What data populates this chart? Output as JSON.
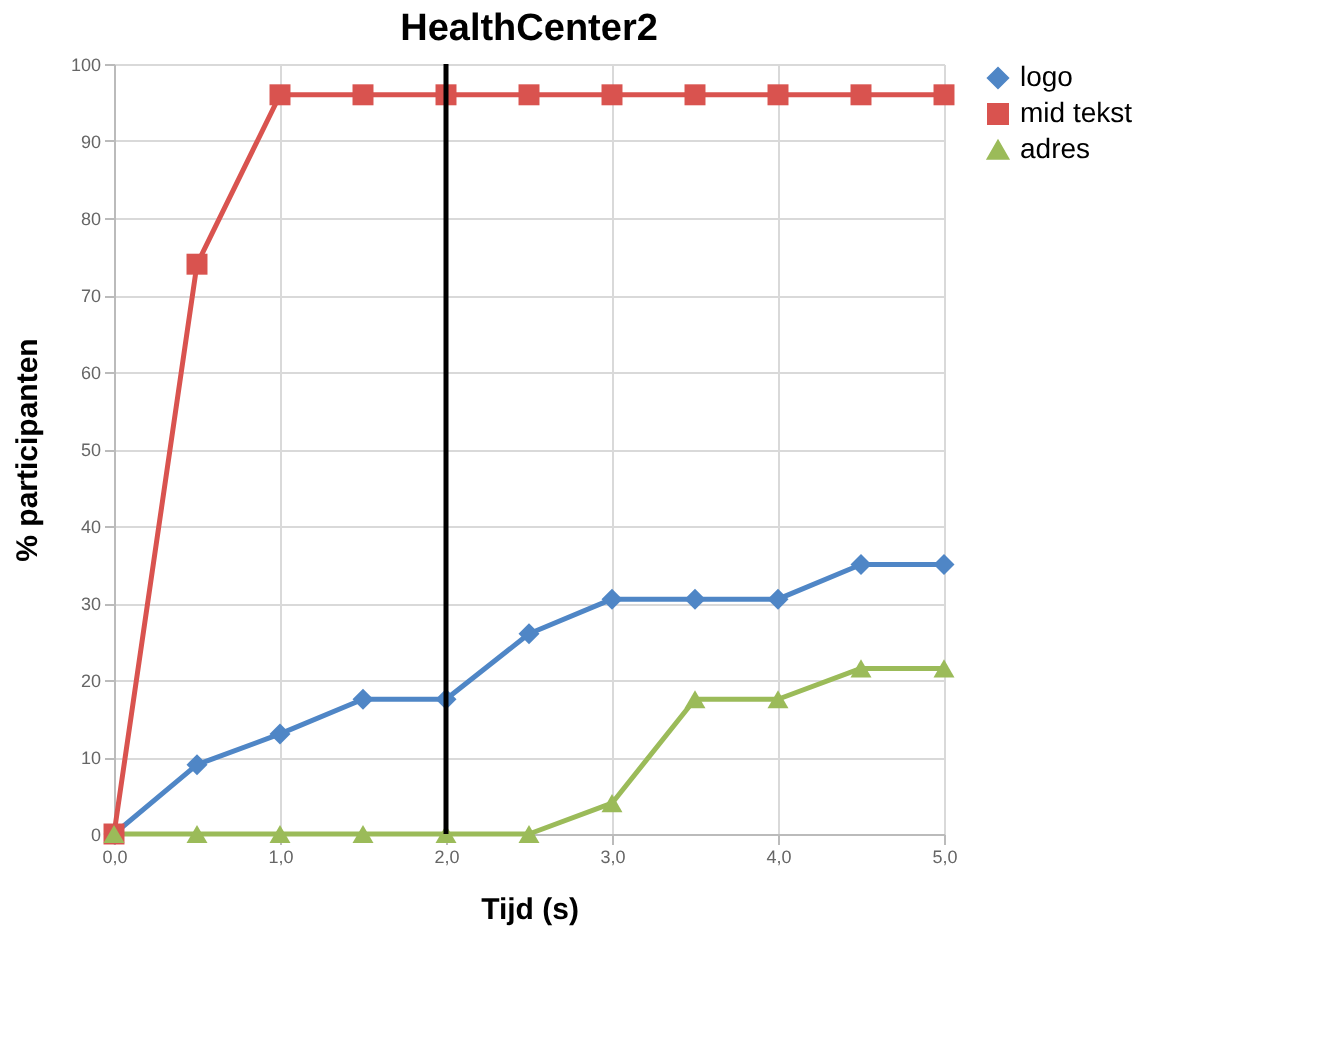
{
  "chart_data": {
    "type": "line",
    "title": "HealthCenter2",
    "xlabel": "Tijd (s)",
    "ylabel": "% participanten",
    "x": [
      0,
      0.5,
      1,
      1.5,
      2,
      2.5,
      3,
      3.5,
      4,
      4.5,
      5
    ],
    "series": [
      {
        "name": "logo",
        "color": "#4f86c6",
        "marker": "diamond",
        "values": [
          0,
          9,
          13,
          17.5,
          17.5,
          26,
          30.5,
          30.5,
          30.5,
          35,
          35
        ]
      },
      {
        "name": "mid tekst",
        "color": "#d9534f",
        "marker": "square",
        "values": [
          0,
          74,
          96,
          96,
          96,
          96,
          96,
          96,
          96,
          96,
          96
        ]
      },
      {
        "name": "adres",
        "color": "#9bbb59",
        "marker": "triangle",
        "values": [
          0,
          0,
          0,
          0,
          0,
          0,
          4,
          17.5,
          17.5,
          21.5,
          21.5
        ]
      }
    ],
    "xlim": [
      0,
      5
    ],
    "xticks": [
      {
        "value": 0,
        "label": "0,0"
      },
      {
        "value": 1,
        "label": "1,0"
      },
      {
        "value": 2,
        "label": "2,0"
      },
      {
        "value": 3,
        "label": "3,0"
      },
      {
        "value": 4,
        "label": "4,0"
      },
      {
        "value": 5,
        "label": "5,0"
      }
    ],
    "ylim": [
      0,
      100
    ],
    "yticks": [
      0,
      10,
      20,
      30,
      40,
      50,
      60,
      70,
      80,
      90,
      100
    ],
    "ref_lines": [
      {
        "axis": "x",
        "value": 2,
        "color": "#000000"
      }
    ],
    "grid": true,
    "legend": "right",
    "line_style": "solid"
  }
}
